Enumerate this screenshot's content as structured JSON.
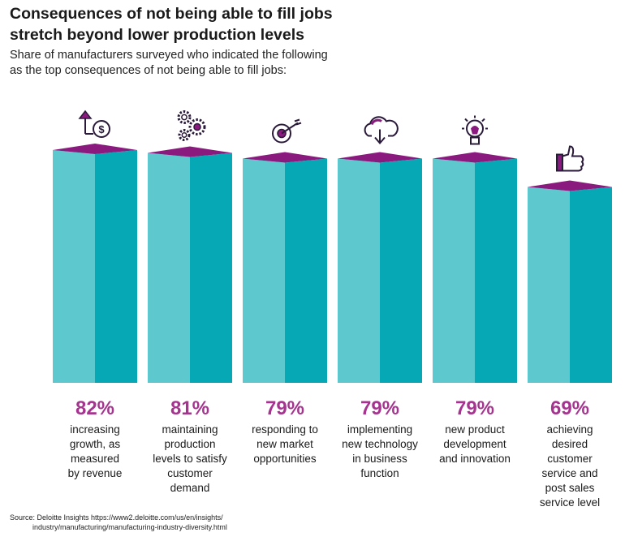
{
  "title_line1": "Consequences of not being able to fill jobs",
  "title_line2": "stretch beyond lower production levels",
  "subtitle_line1": "Share of manufacturers surveyed who indicated the following",
  "subtitle_line2": "as the top consequences of not being able to fill jobs:",
  "source_line1": "Source: Deloitte Insights https://www2.deloitte.com/us/en/insights/",
  "source_line2": "industry/manufacturing/manufacturing-industry-diversity.html",
  "colors": {
    "bar_front": "#5dc8cd",
    "bar_side": "#07a8b5",
    "bar_top": "#8b1a7f",
    "value_label": "#a5338f",
    "icon_stroke": "#2a1a3a"
  },
  "chart_data": {
    "type": "bar",
    "title": "Consequences of not being able to fill jobs stretch beyond lower production levels",
    "unit": "%",
    "ylim": [
      0,
      100
    ],
    "categories": [
      {
        "icon": "revenue-growth-icon",
        "value": 82,
        "value_label": "82%",
        "label_lines": [
          "increasing",
          "growth, as",
          "measured",
          "by revenue"
        ]
      },
      {
        "icon": "gears-icon",
        "value": 81,
        "value_label": "81%",
        "label_lines": [
          "maintaining",
          "production",
          "levels to satisfy",
          "customer",
          "demand"
        ]
      },
      {
        "icon": "target-icon",
        "value": 79,
        "value_label": "79%",
        "label_lines": [
          "responding to",
          "new market",
          "opportunities"
        ]
      },
      {
        "icon": "cloud-download-icon",
        "value": 79,
        "value_label": "79%",
        "label_lines": [
          "implementing",
          "new technology",
          "in business",
          "function"
        ]
      },
      {
        "icon": "lightbulb-icon",
        "value": 79,
        "value_label": "79%",
        "label_lines": [
          "new product",
          "development",
          "and innovation"
        ]
      },
      {
        "icon": "thumbs-up-icon",
        "value": 69,
        "value_label": "69%",
        "label_lines": [
          "achieving",
          "desired",
          "customer",
          "service and",
          "post sales",
          "service level"
        ]
      }
    ]
  }
}
